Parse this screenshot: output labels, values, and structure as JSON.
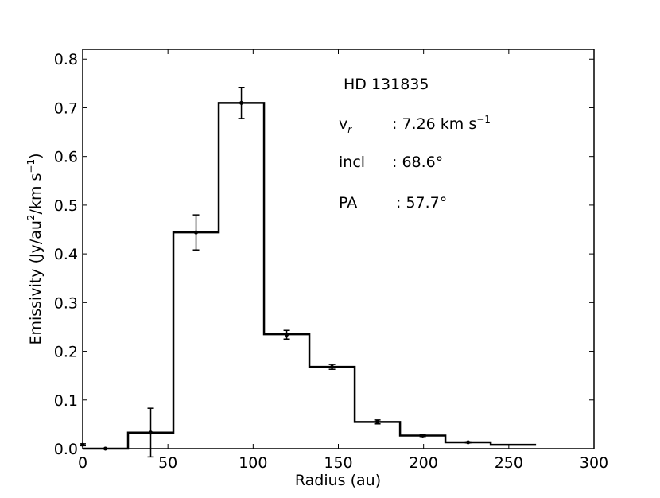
{
  "chart_data": {
    "type": "line",
    "subtype": "step-histogram-with-errorbars",
    "xlabel": "Radius (au)",
    "ylabel": {
      "main": "Emissivity (Jy/au",
      "sup": "2",
      "mid": "/km s",
      "sup2": "−1",
      "end": ")"
    },
    "xlim": [
      0,
      300
    ],
    "ylim": [
      0.0,
      0.82
    ],
    "xticks": [
      0,
      50,
      100,
      150,
      200,
      250,
      300
    ],
    "xtick_labels": [
      "0",
      "50",
      "100",
      "150",
      "200",
      "250",
      "300"
    ],
    "yticks": [
      0.0,
      0.1,
      0.2,
      0.3,
      0.4,
      0.5,
      0.6,
      0.7,
      0.8
    ],
    "ytick_labels": [
      "0.0",
      "0.1",
      "0.2",
      "0.3",
      "0.4",
      "0.5",
      "0.6",
      "0.7",
      "0.8"
    ],
    "grid": false,
    "bins": [
      {
        "x0": 0.0,
        "x1": 26.6,
        "y": 0.0
      },
      {
        "x0": 26.6,
        "x1": 53.2,
        "y": 0.033
      },
      {
        "x0": 53.2,
        "x1": 79.8,
        "y": 0.444
      },
      {
        "x0": 79.8,
        "x1": 106.4,
        "y": 0.71
      },
      {
        "x0": 106.4,
        "x1": 133.0,
        "y": 0.235
      },
      {
        "x0": 133.0,
        "x1": 159.6,
        "y": 0.168
      },
      {
        "x0": 159.6,
        "x1": 186.2,
        "y": 0.055
      },
      {
        "x0": 186.2,
        "x1": 212.8,
        "y": 0.027
      },
      {
        "x0": 212.8,
        "x1": 239.4,
        "y": 0.013
      },
      {
        "x0": 239.4,
        "x1": 266.0,
        "y": 0.008
      }
    ],
    "points": [
      {
        "x": 0.0,
        "y": 0.008,
        "err": 0.002
      },
      {
        "x": 13.3,
        "y": 0.0,
        "err": 0.0
      },
      {
        "x": 39.9,
        "y": 0.033,
        "err": 0.05
      },
      {
        "x": 66.5,
        "y": 0.444,
        "err": 0.036
      },
      {
        "x": 93.1,
        "y": 0.71,
        "err": 0.032
      },
      {
        "x": 119.7,
        "y": 0.234,
        "err": 0.009
      },
      {
        "x": 146.3,
        "y": 0.168,
        "err": 0.005
      },
      {
        "x": 172.9,
        "y": 0.055,
        "err": 0.004
      },
      {
        "x": 199.5,
        "y": 0.027,
        "err": 0.002
      },
      {
        "x": 226.1,
        "y": 0.013,
        "err": 0.001
      }
    ],
    "annotations": {
      "name": "HD 131835",
      "vr_label": "v",
      "vr_sub": "r",
      "vr_value": ": 7.26 km s",
      "vr_sup": "−1",
      "incl_label": "incl",
      "incl_value": ": 68.6°",
      "pa_label": "PA",
      "pa_value": ": 57.7°"
    },
    "colors": {
      "line": "#000000",
      "background": "#ffffff"
    }
  }
}
